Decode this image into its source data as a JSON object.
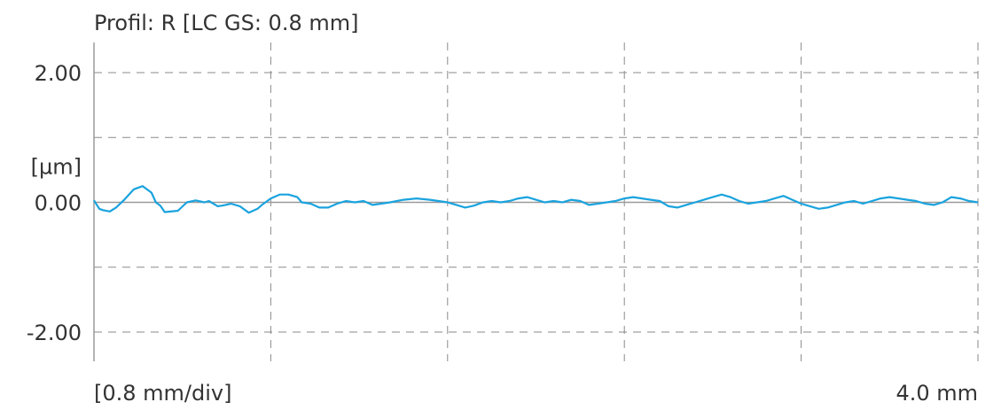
{
  "chart_data": {
    "type": "line",
    "title": "Profil: R [LC GS: 0.8 mm]",
    "ylabel": "[µm]",
    "xlabel": "[0.8 mm/div]",
    "x_end_label": "4.0 mm",
    "ylim": [
      -2.0,
      2.0
    ],
    "xlim": [
      0.0,
      4.0
    ],
    "y_ticks": [
      {
        "value": 2.0,
        "label": "2.00"
      },
      {
        "value": 0.0,
        "label": "0.00"
      },
      {
        "value": -2.0,
        "label": "-2.00"
      }
    ],
    "y_grid": [
      2.0,
      1.0,
      -1.0,
      -2.0
    ],
    "x_grid": [
      0.8,
      1.6,
      2.4,
      3.2,
      4.0
    ],
    "grid": true,
    "series": [
      {
        "color": "#1aa3de",
        "x": [
          0.0,
          0.024,
          0.04,
          0.072,
          0.1,
          0.14,
          0.18,
          0.22,
          0.26,
          0.28,
          0.3,
          0.32,
          0.38,
          0.42,
          0.46,
          0.5,
          0.52,
          0.56,
          0.58,
          0.62,
          0.66,
          0.7,
          0.74,
          0.76,
          0.8,
          0.84,
          0.88,
          0.92,
          0.94,
          0.98,
          1.02,
          1.06,
          1.1,
          1.14,
          1.18,
          1.22,
          1.26,
          1.3,
          1.34,
          1.4,
          1.46,
          1.52,
          1.6,
          1.64,
          1.68,
          1.72,
          1.76,
          1.8,
          1.84,
          1.88,
          1.92,
          1.96,
          2.0,
          2.04,
          2.08,
          2.12,
          2.16,
          2.2,
          2.24,
          2.28,
          2.32,
          2.36,
          2.4,
          2.44,
          2.48,
          2.52,
          2.56,
          2.6,
          2.64,
          2.68,
          2.72,
          2.76,
          2.8,
          2.84,
          2.88,
          2.92,
          2.96,
          3.0,
          3.04,
          3.08,
          3.12,
          3.16,
          3.2,
          3.24,
          3.28,
          3.32,
          3.36,
          3.4,
          3.44,
          3.48,
          3.52,
          3.56,
          3.6,
          3.64,
          3.68,
          3.72,
          3.76,
          3.8,
          3.84,
          3.88,
          3.92,
          3.96,
          4.0
        ],
        "y": [
          0.03,
          -0.1,
          -0.12,
          -0.14,
          -0.08,
          0.05,
          0.2,
          0.25,
          0.15,
          0.0,
          -0.05,
          -0.15,
          -0.13,
          0.0,
          0.03,
          0.0,
          0.02,
          -0.06,
          -0.05,
          -0.02,
          -0.06,
          -0.16,
          -0.1,
          -0.04,
          0.06,
          0.12,
          0.12,
          0.08,
          0.0,
          -0.02,
          -0.08,
          -0.08,
          -0.02,
          0.02,
          0.0,
          0.02,
          -0.04,
          -0.02,
          0.0,
          0.04,
          0.06,
          0.04,
          0.0,
          -0.04,
          -0.08,
          -0.05,
          0.0,
          0.02,
          0.0,
          0.02,
          0.06,
          0.08,
          0.04,
          0.0,
          0.02,
          0.0,
          0.04,
          0.02,
          -0.04,
          -0.02,
          0.0,
          0.02,
          0.06,
          0.08,
          0.06,
          0.04,
          0.02,
          -0.06,
          -0.08,
          -0.04,
          0.0,
          0.04,
          0.08,
          0.12,
          0.08,
          0.02,
          -0.02,
          0.0,
          0.02,
          0.06,
          0.1,
          0.04,
          -0.02,
          -0.06,
          -0.1,
          -0.08,
          -0.04,
          0.0,
          0.02,
          -0.02,
          0.02,
          0.06,
          0.08,
          0.06,
          0.04,
          0.02,
          -0.02,
          -0.04,
          0.0,
          0.08,
          0.06,
          0.02,
          0.0
        ]
      }
    ]
  }
}
